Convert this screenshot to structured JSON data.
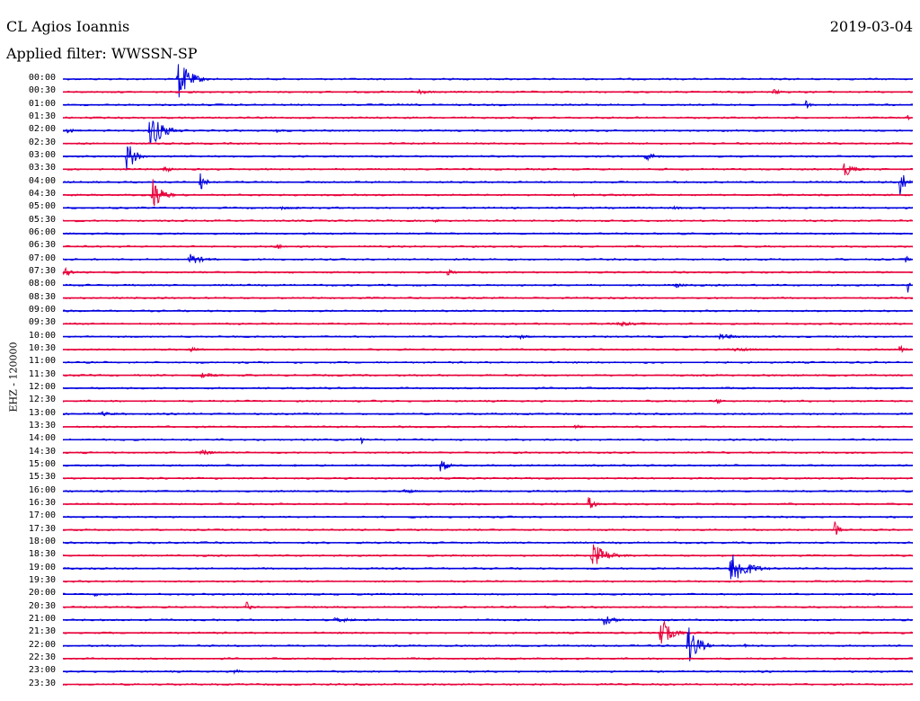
{
  "header": {
    "station": "CL Agios Ioannis",
    "filter": "Applied filter: WWSSN-SP",
    "date": "2019-03-04"
  },
  "chart_data": {
    "type": "line",
    "title": "CL Agios Ioannis",
    "ylabel": "EHZ - 120000",
    "x_range_minutes": [
      0,
      30
    ],
    "colors": {
      "odd": "#0000e0",
      "even": "#e8003a"
    },
    "rows": [
      "00:00",
      "00:30",
      "01:00",
      "01:30",
      "02:00",
      "02:30",
      "03:00",
      "03:30",
      "04:00",
      "04:30",
      "05:00",
      "05:30",
      "06:00",
      "06:30",
      "07:00",
      "07:30",
      "08:00",
      "08:30",
      "09:00",
      "09:30",
      "10:00",
      "10:30",
      "11:00",
      "11:30",
      "12:00",
      "12:30",
      "13:00",
      "13:30",
      "14:00",
      "14:30",
      "15:00",
      "15:30",
      "16:00",
      "16:30",
      "17:00",
      "17:30",
      "18:00",
      "18:30",
      "19:00",
      "19:30",
      "20:00",
      "20:30",
      "21:00",
      "21:30",
      "22:00",
      "22:30",
      "23:00",
      "23:30"
    ],
    "events": [
      {
        "row": 0,
        "t": 4.0,
        "amp": 3.2,
        "dur": 1.2
      },
      {
        "row": 1,
        "t": 12.5,
        "amp": 0.6,
        "dur": 1.0
      },
      {
        "row": 1,
        "t": 25.0,
        "amp": 0.6,
        "dur": 0.7
      },
      {
        "row": 2,
        "t": 26.2,
        "amp": 0.9,
        "dur": 0.4
      },
      {
        "row": 3,
        "t": 16.5,
        "amp": 0.3,
        "dur": 0.5
      },
      {
        "row": 3,
        "t": 29.8,
        "amp": 0.5,
        "dur": 0.3
      },
      {
        "row": 4,
        "t": 0.1,
        "amp": 0.5,
        "dur": 0.8
      },
      {
        "row": 4,
        "t": 3.0,
        "amp": 3.0,
        "dur": 1.3
      },
      {
        "row": 4,
        "t": 7.5,
        "amp": 0.3,
        "dur": 0.7
      },
      {
        "row": 6,
        "t": 2.2,
        "amp": 2.8,
        "dur": 0.8
      },
      {
        "row": 6,
        "t": 20.5,
        "amp": 1.0,
        "dur": 0.8
      },
      {
        "row": 7,
        "t": 3.5,
        "amp": 0.5,
        "dur": 1.0
      },
      {
        "row": 7,
        "t": 27.5,
        "amp": 1.3,
        "dur": 1.0
      },
      {
        "row": 8,
        "t": 4.8,
        "amp": 1.6,
        "dur": 0.6
      },
      {
        "row": 8,
        "t": 29.5,
        "amp": 2.8,
        "dur": 0.5
      },
      {
        "row": 9,
        "t": 3.1,
        "amp": 3.0,
        "dur": 0.9
      },
      {
        "row": 9,
        "t": 18.0,
        "amp": 0.4,
        "dur": 0.2
      },
      {
        "row": 10,
        "t": 7.5,
        "amp": 0.3,
        "dur": 2.0
      },
      {
        "row": 10,
        "t": 21.5,
        "amp": 0.4,
        "dur": 0.8
      },
      {
        "row": 11,
        "t": 13.0,
        "amp": 0.3,
        "dur": 1.2
      },
      {
        "row": 13,
        "t": 7.5,
        "amp": 0.4,
        "dur": 0.9
      },
      {
        "row": 14,
        "t": 4.4,
        "amp": 1.0,
        "dur": 1.2
      },
      {
        "row": 14,
        "t": 29.7,
        "amp": 1.0,
        "dur": 0.6
      },
      {
        "row": 15,
        "t": 0.0,
        "amp": 0.8,
        "dur": 0.7
      },
      {
        "row": 15,
        "t": 13.5,
        "amp": 0.5,
        "dur": 0.9
      },
      {
        "row": 16,
        "t": 21.5,
        "amp": 0.5,
        "dur": 1.0
      },
      {
        "row": 16,
        "t": 29.8,
        "amp": 1.8,
        "dur": 1.3
      },
      {
        "row": 19,
        "t": 19.5,
        "amp": 0.4,
        "dur": 2.0
      },
      {
        "row": 20,
        "t": 16.0,
        "amp": 0.4,
        "dur": 1.1
      },
      {
        "row": 20,
        "t": 23.0,
        "amp": 0.5,
        "dur": 2.0
      },
      {
        "row": 21,
        "t": 4.4,
        "amp": 0.5,
        "dur": 0.9
      },
      {
        "row": 21,
        "t": 23.5,
        "amp": 0.3,
        "dur": 3.0
      },
      {
        "row": 21,
        "t": 29.5,
        "amp": 1.2,
        "dur": 1.0
      },
      {
        "row": 23,
        "t": 4.8,
        "amp": 0.5,
        "dur": 1.2
      },
      {
        "row": 25,
        "t": 23.0,
        "amp": 0.5,
        "dur": 0.8
      },
      {
        "row": 26,
        "t": 1.3,
        "amp": 0.4,
        "dur": 1.2
      },
      {
        "row": 27,
        "t": 18.0,
        "amp": 0.4,
        "dur": 0.8
      },
      {
        "row": 28,
        "t": 10.5,
        "amp": 0.8,
        "dur": 0.3
      },
      {
        "row": 29,
        "t": 4.8,
        "amp": 0.5,
        "dur": 1.2
      },
      {
        "row": 30,
        "t": 13.3,
        "amp": 1.8,
        "dur": 0.6
      },
      {
        "row": 30,
        "t": 8.0,
        "amp": 0.3,
        "dur": 0.8
      },
      {
        "row": 32,
        "t": 12.0,
        "amp": 0.5,
        "dur": 1.0
      },
      {
        "row": 33,
        "t": 18.5,
        "amp": 1.2,
        "dur": 0.7
      },
      {
        "row": 35,
        "t": 27.2,
        "amp": 1.5,
        "dur": 0.5
      },
      {
        "row": 37,
        "t": 18.6,
        "amp": 2.0,
        "dur": 1.5
      },
      {
        "row": 38,
        "t": 23.5,
        "amp": 3.0,
        "dur": 1.5
      },
      {
        "row": 40,
        "t": 1.1,
        "amp": 0.5,
        "dur": 0.5
      },
      {
        "row": 41,
        "t": 6.4,
        "amp": 1.4,
        "dur": 0.4
      },
      {
        "row": 41,
        "t": 17.0,
        "amp": 0.4,
        "dur": 0.3
      },
      {
        "row": 42,
        "t": 9.5,
        "amp": 0.5,
        "dur": 1.8
      },
      {
        "row": 42,
        "t": 19.0,
        "amp": 1.0,
        "dur": 1.0
      },
      {
        "row": 43,
        "t": 21.0,
        "amp": 2.8,
        "dur": 1.0
      },
      {
        "row": 44,
        "t": 22.0,
        "amp": 3.5,
        "dur": 1.0
      },
      {
        "row": 44,
        "t": 24.0,
        "amp": 0.5,
        "dur": 0.3
      },
      {
        "row": 46,
        "t": 6.0,
        "amp": 0.6,
        "dur": 0.6
      }
    ]
  }
}
